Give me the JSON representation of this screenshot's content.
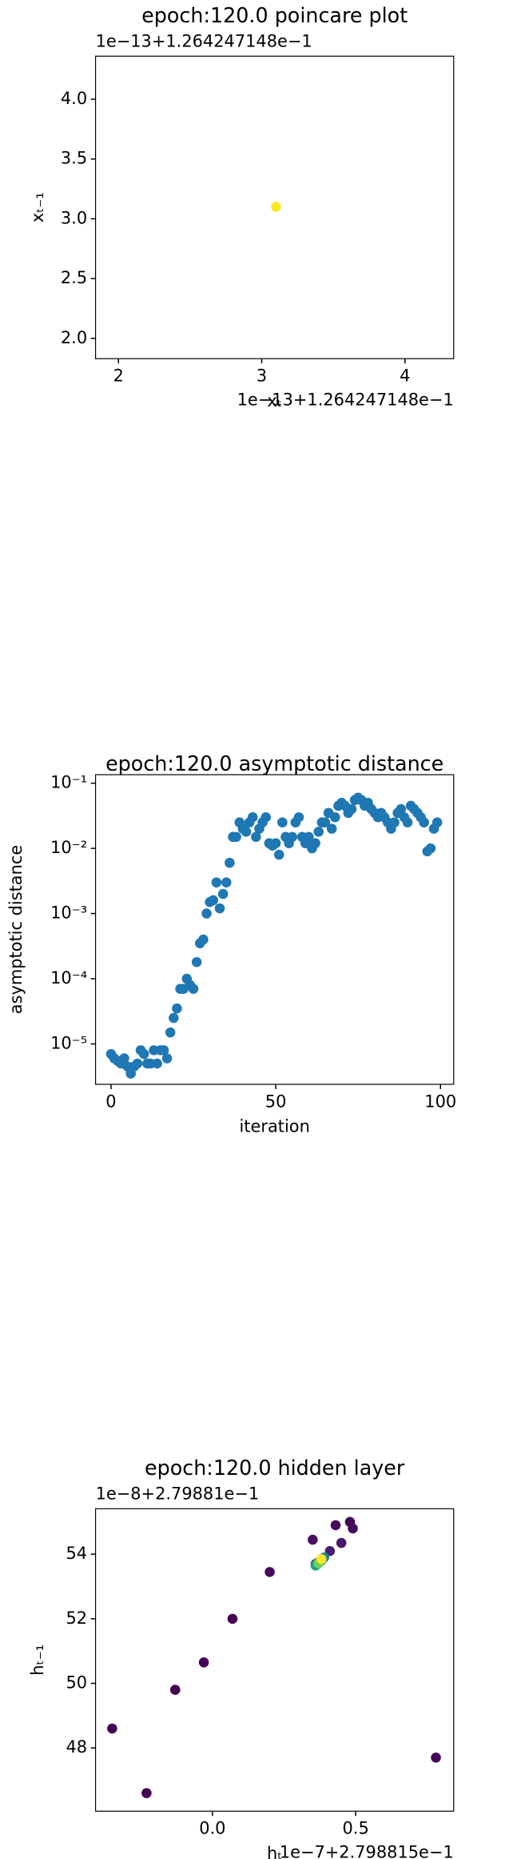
{
  "chart_data": [
    {
      "type": "scatter",
      "title": "epoch:120.0 poincare plot",
      "x_label": "xₜ",
      "y_label": "xₜ₋₁",
      "x_offset": "1e−13+1.264247148e−1",
      "y_offset": "1e−13+1.264247148e−1",
      "xlim": [
        1.84,
        4.34
      ],
      "ylim": [
        1.83,
        4.36
      ],
      "xticks": [
        2,
        3,
        4
      ],
      "yticks": [
        {
          "value": 2,
          "label": "2.0"
        },
        2.5,
        {
          "value": 3,
          "label": "3.0"
        },
        3.5,
        {
          "value": 4,
          "label": "4.0"
        }
      ],
      "series": [
        {
          "x": [
            3.1
          ],
          "values": [
            3.1
          ],
          "color": "#fde725"
        }
      ]
    },
    {
      "type": "scatter",
      "title": "epoch:120.0 asymptotic distance",
      "x_label": "iteration",
      "y_label": "asymptotic distance",
      "log_y": true,
      "xlim": [
        -4.7,
        104
      ],
      "ylim": [
        2.4e-06,
        0.135
      ],
      "xticks": [
        0,
        50,
        100
      ],
      "yticks": [
        {
          "value": 1e-05,
          "label": "10⁻⁵"
        },
        {
          "value": 0.0001,
          "label": "10⁻⁴"
        },
        {
          "value": 0.001,
          "label": "10⁻³"
        },
        {
          "value": 0.01,
          "label": "10⁻²"
        },
        {
          "value": 0.1,
          "label": "10⁻¹"
        }
      ],
      "series": [
        {
          "color": "#1f77b4",
          "x": [
            0,
            1,
            2,
            3,
            4,
            5,
            6,
            7,
            8,
            9,
            10,
            11,
            12,
            13,
            14,
            15,
            16,
            17,
            18,
            19,
            20,
            21,
            22,
            23,
            24,
            25,
            26,
            27,
            28,
            29,
            30,
            31,
            32,
            33,
            34,
            35,
            36,
            37,
            38,
            39,
            40,
            41,
            42,
            43,
            44,
            45,
            46,
            47,
            48,
            49,
            50,
            51,
            52,
            53,
            54,
            55,
            56,
            57,
            58,
            59,
            60,
            61,
            62,
            63,
            64,
            65,
            66,
            67,
            68,
            69,
            70,
            71,
            72,
            73,
            74,
            75,
            76,
            77,
            78,
            79,
            80,
            81,
            82,
            83,
            84,
            85,
            86,
            87,
            88,
            89,
            90,
            91,
            92,
            93,
            94,
            95,
            96,
            97,
            98,
            99
          ],
          "values": [
            7e-06,
            6e-06,
            5.5e-06,
            5e-06,
            6e-06,
            4.5e-06,
            3.5e-06,
            4.5e-06,
            5e-06,
            8e-06,
            7e-06,
            5e-06,
            5e-06,
            8e-06,
            5e-06,
            8e-06,
            8e-06,
            6e-06,
            1.5e-05,
            2.5e-05,
            3.5e-05,
            7e-05,
            7e-05,
            0.0001,
            8e-05,
            7e-05,
            0.00018,
            0.00035,
            0.0004,
            0.001,
            0.0015,
            0.0016,
            0.003,
            0.0012,
            0.002,
            0.003,
            0.006,
            0.015,
            0.015,
            0.025,
            0.02,
            0.018,
            0.025,
            0.03,
            0.015,
            0.02,
            0.025,
            0.03,
            0.012,
            0.011,
            0.012,
            0.008,
            0.025,
            0.015,
            0.012,
            0.015,
            0.025,
            0.03,
            0.015,
            0.012,
            0.015,
            0.01,
            0.012,
            0.018,
            0.025,
            0.025,
            0.035,
            0.02,
            0.03,
            0.045,
            0.05,
            0.045,
            0.035,
            0.04,
            0.055,
            0.06,
            0.055,
            0.045,
            0.05,
            0.04,
            0.035,
            0.03,
            0.035,
            0.03,
            0.025,
            0.02,
            0.025,
            0.035,
            0.04,
            0.03,
            0.025,
            0.045,
            0.04,
            0.035,
            0.03,
            0.025,
            0.009,
            0.01,
            0.02,
            0.025
          ]
        }
      ]
    },
    {
      "type": "scatter",
      "title": "epoch:120.0 hidden layer",
      "x_label": "hₜ",
      "y_label": "hₜ₋₁",
      "x_offset": "1e−7+2.798815e−1",
      "y_offset": "1e−8+2.79881e−1",
      "xlim": [
        -0.408,
        0.842
      ],
      "ylim": [
        46.04,
        55.41
      ],
      "xticks": [
        {
          "value": 0,
          "label": "0.0"
        },
        0.5
      ],
      "yticks": [
        48,
        50,
        52,
        54
      ],
      "series": [
        {
          "x": [
            -0.35,
            -0.23,
            -0.13,
            -0.03,
            0.07,
            0.2,
            0.35,
            0.43,
            0.48,
            0.49,
            0.45,
            0.41,
            0.78,
            0.36,
            0.37,
            0.39,
            0.36,
            0.38,
            0.37,
            0.38
          ],
          "values": [
            48.6,
            46.6,
            49.8,
            50.65,
            52.0,
            53.45,
            54.45,
            54.9,
            55.0,
            54.8,
            54.35,
            54.1,
            47.7,
            53.7,
            53.75,
            53.9,
            53.65,
            53.8,
            53.72,
            53.85
          ],
          "colors": [
            "#440154",
            "#440154",
            "#440154",
            "#440154",
            "#440154",
            "#46085c",
            "#471063",
            "#46085c",
            "#440154",
            "#46085c",
            "#48186a",
            "#482071",
            "#440154",
            "#3e4a89",
            "#31688e",
            "#26828e",
            "#1f9e89",
            "#35b779",
            "#6ece58",
            "#fde725"
          ]
        }
      ]
    }
  ]
}
